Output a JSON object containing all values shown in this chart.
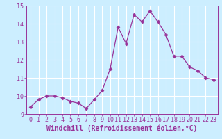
{
  "x": [
    0,
    1,
    2,
    3,
    4,
    5,
    6,
    7,
    8,
    9,
    10,
    11,
    12,
    13,
    14,
    15,
    16,
    17,
    18,
    19,
    20,
    21,
    22,
    23
  ],
  "y": [
    9.4,
    9.8,
    10.0,
    10.0,
    9.9,
    9.7,
    9.6,
    9.3,
    9.8,
    10.3,
    11.5,
    13.8,
    12.9,
    14.5,
    14.1,
    14.7,
    14.1,
    13.4,
    12.2,
    12.2,
    11.6,
    11.4,
    11.0,
    10.9
  ],
  "xlim": [
    -0.5,
    23.5
  ],
  "ylim": [
    9.0,
    15.0
  ],
  "yticks": [
    9,
    10,
    11,
    12,
    13,
    14,
    15
  ],
  "xticks": [
    0,
    1,
    2,
    3,
    4,
    5,
    6,
    7,
    8,
    9,
    10,
    11,
    12,
    13,
    14,
    15,
    16,
    17,
    18,
    19,
    20,
    21,
    22,
    23
  ],
  "xlabel": "Windchill (Refroidissement éolien,°C)",
  "line_color": "#993399",
  "marker": "D",
  "marker_size": 2.5,
  "bg_color": "#cceeff",
  "grid_color": "#ffffff",
  "axis_color": "#993399",
  "tick_color": "#993399",
  "label_color": "#993399",
  "tick_fontsize": 6,
  "xlabel_fontsize": 7
}
